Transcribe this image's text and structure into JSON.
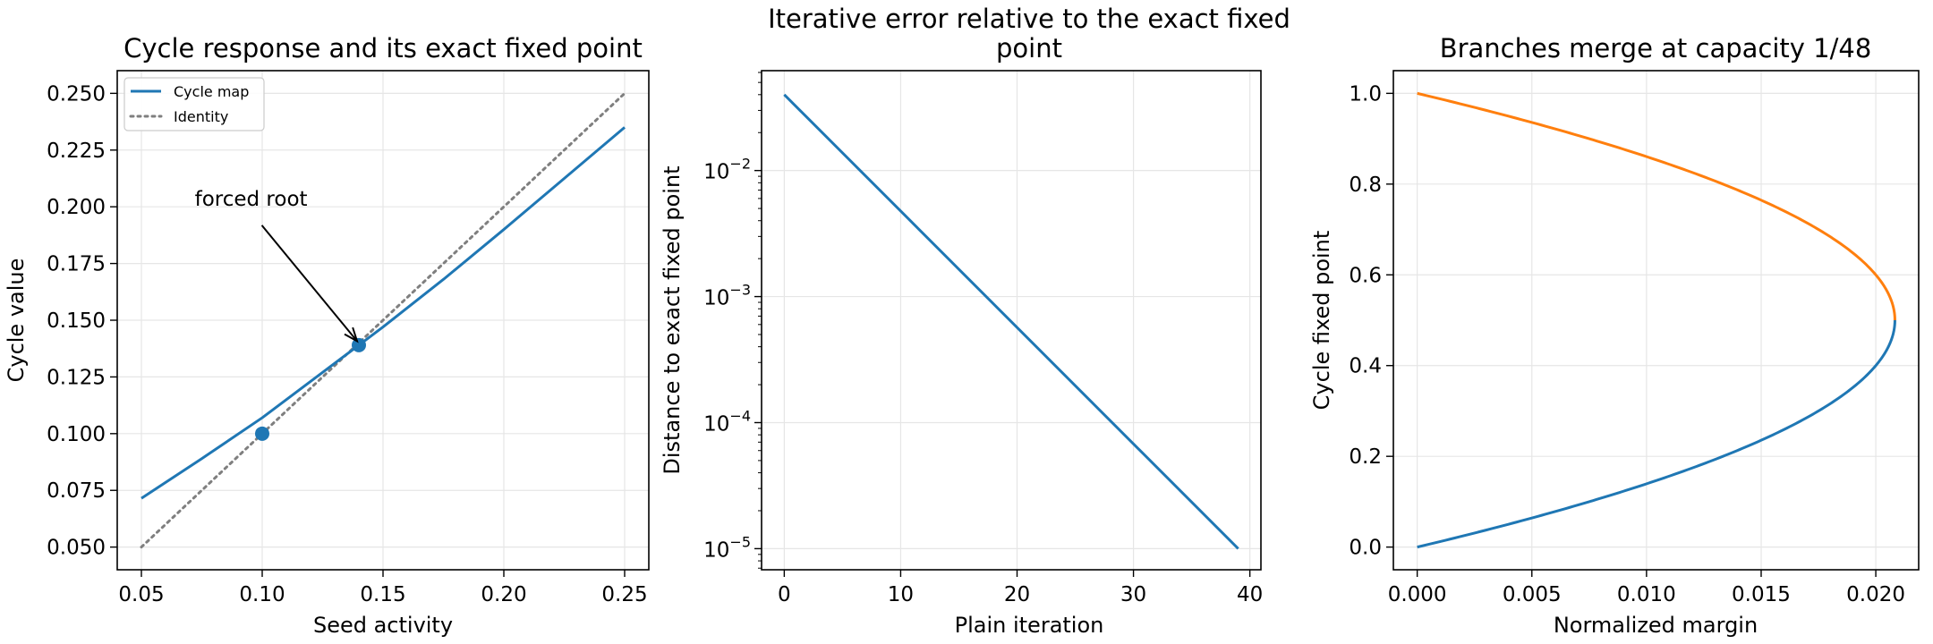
{
  "chart_data": [
    {
      "type": "line",
      "title": "Cycle response and its exact fixed point",
      "xlabel": "Seed activity",
      "ylabel": "Cycle value",
      "xlim": [
        0.04,
        0.26
      ],
      "ylim": [
        0.04,
        0.26
      ],
      "xticks": [
        "0.05",
        "0.10",
        "0.15",
        "0.20",
        "0.25"
      ],
      "yticks": [
        "0.050",
        "0.075",
        "0.100",
        "0.125",
        "0.150",
        "0.175",
        "0.200",
        "0.225",
        "0.250"
      ],
      "grid": true,
      "legend": "top-left",
      "series": [
        {
          "name": "Cycle map",
          "style": "solid",
          "color": "#1f77b4",
          "x": [
            0.05,
            0.075,
            0.1,
            0.125,
            0.14,
            0.15,
            0.175,
            0.2,
            0.225,
            0.25
          ],
          "y": [
            0.0715,
            0.089,
            0.107,
            0.127,
            0.139,
            0.147,
            0.168,
            0.19,
            0.2125,
            0.235
          ]
        },
        {
          "name": "Identity",
          "style": "dotted",
          "color": "#7f7f7f",
          "x": [
            0.05,
            0.25
          ],
          "y": [
            0.05,
            0.25
          ]
        }
      ],
      "points": [
        {
          "x": 0.1,
          "y": 0.1,
          "color": "#1f77b4"
        },
        {
          "x": 0.14,
          "y": 0.139,
          "color": "#1f77b4"
        }
      ],
      "annotation": {
        "text": "forced root",
        "text_x": 0.0954,
        "text_y": 0.2005,
        "target_x": 0.14,
        "target_y": 0.14
      }
    },
    {
      "type": "line",
      "title_lines": [
        "Iterative error relative to the exact fixed",
        "point"
      ],
      "xlabel": "Plain iteration",
      "ylabel": "Distance to exact fixed point",
      "yscale": "log",
      "xlim": [
        -1.95,
        40.95
      ],
      "ylim": [
        6.8e-06,
        0.062
      ],
      "xticks": [
        "0",
        "10",
        "20",
        "30",
        "40"
      ],
      "yticks": [
        {
          "base": "10",
          "exp": "−5",
          "value": 1e-05
        },
        {
          "base": "10",
          "exp": "−4",
          "value": 0.0001
        },
        {
          "base": "10",
          "exp": "−3",
          "value": 0.001
        },
        {
          "base": "10",
          "exp": "−2",
          "value": 0.01
        }
      ],
      "grid": true,
      "series": [
        {
          "color": "#1f77b4",
          "x": [
            0,
            39
          ],
          "y": [
            0.04,
            1e-05
          ]
        }
      ]
    },
    {
      "type": "line",
      "title": "Branches merge at capacity 1/48",
      "xlabel": "Normalized margin",
      "ylabel": "Cycle fixed point",
      "xlim": [
        -0.00104,
        0.02187
      ],
      "ylim": [
        -0.05,
        1.05
      ],
      "xticks": [
        "0.000",
        "0.005",
        "0.010",
        "0.015",
        "0.020"
      ],
      "yticks": [
        "0.0",
        "0.2",
        "0.4",
        "0.6",
        "0.8",
        "1.0"
      ],
      "grid": true,
      "merge_margin": 0.0208333,
      "series": [
        {
          "color": "#1f77b4",
          "y_from": 0.0,
          "y_to": 0.5
        },
        {
          "color": "#ff7f0e",
          "y_from": 0.5,
          "y_to": 1.0
        }
      ]
    }
  ]
}
